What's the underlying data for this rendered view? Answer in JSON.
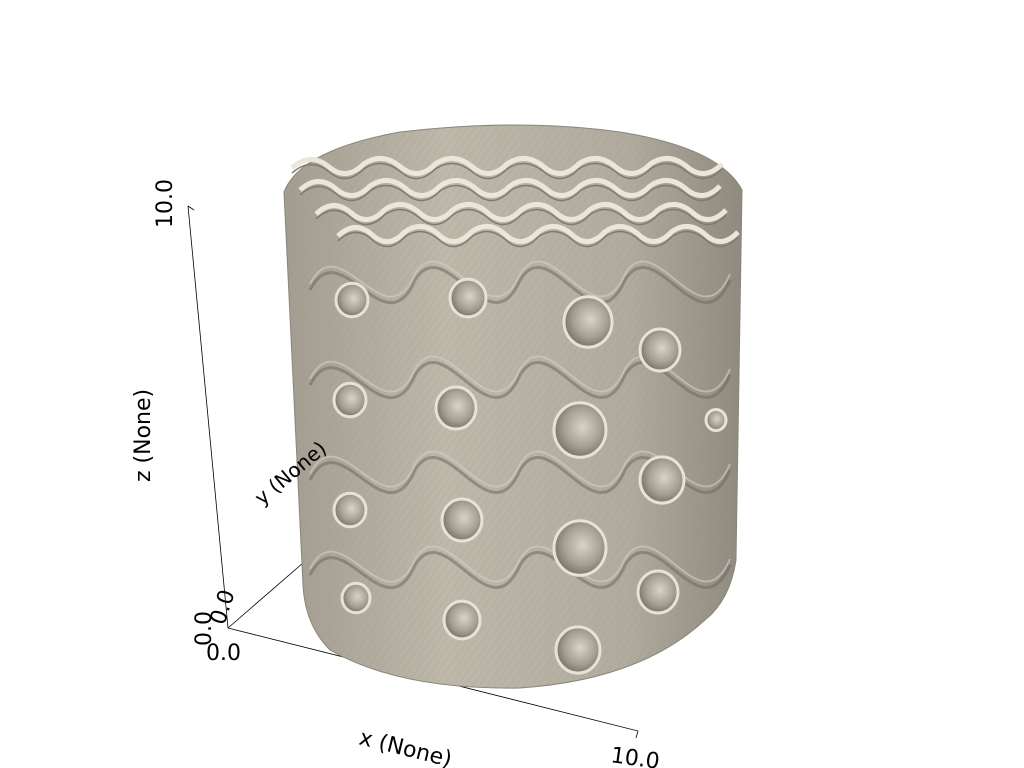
{
  "scene": {
    "surface_color": "#b7b2a4",
    "edge_color": "#eae6da",
    "shadow_color": "#7f7a6f",
    "background": "#ffffff"
  },
  "axes": {
    "x": {
      "label": "x (None)",
      "min_label": "0.0",
      "max_label": "10.0"
    },
    "y": {
      "label": "y (None)",
      "min_label": "0.0"
    },
    "z": {
      "label": "z (None)",
      "min_label": "0.0",
      "max_label": "10.0"
    }
  }
}
